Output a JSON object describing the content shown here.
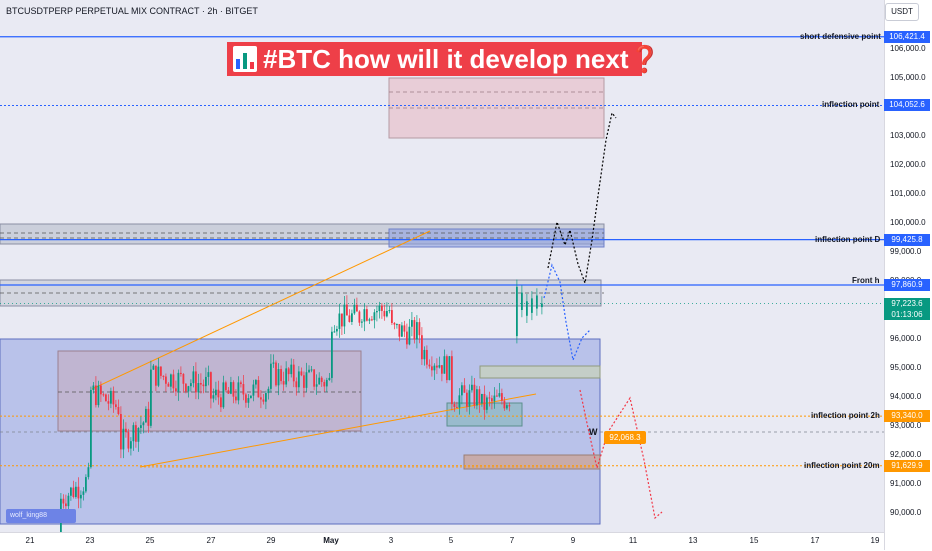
{
  "header": {
    "symbol": "BTCUSDTPERP PERPETUAL MIX CONTRACT · 2h · BITGET",
    "currency": "USDT"
  },
  "headline": {
    "text": "#BTC how will it develop next",
    "suffix": "❓"
  },
  "watermark": "wolf_king88",
  "price_axis": {
    "ticks": [
      "106,000.0",
      "105,000.0",
      "104,000.0",
      "103,000.0",
      "102,000.0",
      "101,000.0",
      "100,000.0",
      "99,000.0",
      "98,000.0",
      "97,000.0",
      "96,000.0",
      "95,000.0",
      "94,000.0",
      "93,000.0",
      "92,000.0",
      "91,000.0",
      "90,000.0"
    ],
    "tick_values": [
      106000,
      105000,
      104000,
      103000,
      102000,
      101000,
      100000,
      99000,
      98000,
      97000,
      96000,
      95000,
      94000,
      93000,
      92000,
      91000,
      90000
    ]
  },
  "time_axis": {
    "labels": [
      "21",
      "23",
      "25",
      "27",
      "29",
      "May",
      "3",
      "5",
      "7",
      "9",
      "11",
      "13",
      "15",
      "17",
      "19"
    ],
    "bold_index": 5
  },
  "levels": [
    {
      "name": "short defensive point",
      "value": "106,421.4",
      "price": 106421.4,
      "style": "solid",
      "color": "#2962ff"
    },
    {
      "name": "inflection point",
      "value": "104,052.6",
      "price": 104052.6,
      "style": "dotted",
      "color": "#2962ff"
    },
    {
      "name": "inflection point D",
      "value": "99,425.8",
      "price": 99425.8,
      "style": "solid",
      "color": "#2962ff"
    },
    {
      "name": "Front h",
      "value": "97,860.9",
      "price": 97860.9,
      "style": "solid",
      "color": "#2962ff"
    },
    {
      "name": "inflection point 2h",
      "value": "93,340.0",
      "price": 93340.0,
      "style": "dotted",
      "color": "#ff9800"
    },
    {
      "name": "inflection point 20m",
      "value": "91,629.9",
      "price": 91629.9,
      "style": "dotted",
      "color": "#ff9800"
    }
  ],
  "current_price": {
    "value": "97,223.6",
    "countdown": "01:13:06",
    "color": "#089981"
  },
  "annotations": {
    "w_label": "W",
    "orange_badge": "92,068.3"
  },
  "colors": {
    "up": "#089981",
    "down": "#f23645",
    "blue_line": "#2962ff",
    "orange": "#ff9800",
    "headline_bg": "#ee3f48"
  },
  "chart_data": {
    "type": "candlestick",
    "title": "",
    "ylim": [
      89500,
      107000
    ],
    "x_range": [
      "Apr 20",
      "May 19"
    ],
    "candles": [
      {
        "t": "Apr 22",
        "o": 88600,
        "h": 90800,
        "l": 88400,
        "c": 90500
      },
      {
        "t": "Apr 23",
        "o": 91200,
        "h": 94600,
        "l": 91000,
        "c": 94200
      },
      {
        "t": "Apr 24",
        "o": 93600,
        "h": 94500,
        "l": 91700,
        "c": 92400
      },
      {
        "t": "Apr 25",
        "o": 93400,
        "h": 95700,
        "l": 93000,
        "c": 94800
      },
      {
        "t": "Apr 27",
        "o": 94400,
        "h": 95400,
        "l": 93600,
        "c": 94000
      },
      {
        "t": "Apr 29",
        "o": 94300,
        "h": 95300,
        "l": 93700,
        "c": 94800
      },
      {
        "t": "May 1",
        "o": 94500,
        "h": 97000,
        "l": 93200,
        "c": 96700
      },
      {
        "t": "May 2",
        "o": 96800,
        "h": 97400,
        "l": 96200,
        "c": 97000
      },
      {
        "t": "May 3",
        "o": 97000,
        "h": 97860,
        "l": 96000,
        "c": 96300
      },
      {
        "t": "May 4",
        "o": 96200,
        "h": 96400,
        "l": 95200,
        "c": 95600
      },
      {
        "t": "May 5",
        "o": 94900,
        "h": 95400,
        "l": 93500,
        "c": 94000
      },
      {
        "t": "May 6",
        "o": 94000,
        "h": 94800,
        "l": 93300,
        "c": 93700
      },
      {
        "t": "May 7",
        "o": 94000,
        "h": 97800,
        "l": 93800,
        "c": 97223.6
      }
    ]
  }
}
